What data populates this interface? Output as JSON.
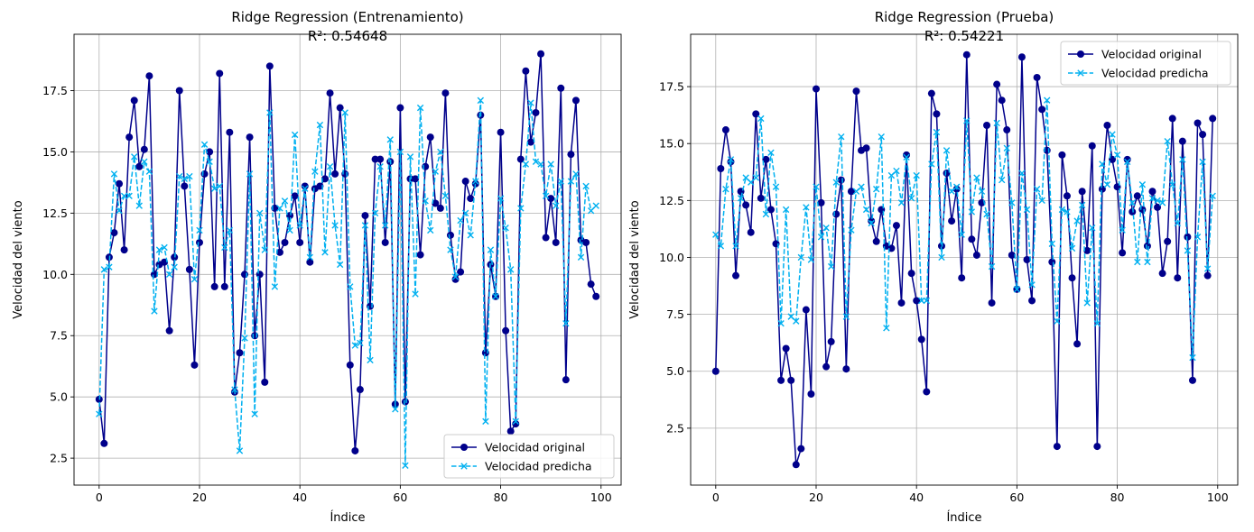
{
  "chart_data": [
    {
      "type": "line",
      "title": "Ridge Regression (Entrenamiento)",
      "subtitle": "R²: 0.54648",
      "xlabel": "Índice",
      "ylabel": "Velocidad del viento",
      "xlim": [
        -5,
        104
      ],
      "ylim": [
        1.4,
        19.8
      ],
      "xticks": [
        0,
        20,
        40,
        60,
        80,
        100
      ],
      "yticks": [
        2.5,
        5.0,
        7.5,
        10.0,
        12.5,
        15.0,
        17.5
      ],
      "ytick_labels": [
        "2.5",
        "5.0",
        "7.5",
        "10.0",
        "12.5",
        "15.0",
        "17.5"
      ],
      "grid": true,
      "legend_position": "lower-right",
      "series": [
        {
          "name": "Velocidad original",
          "color": "#00008b",
          "marker": "circle",
          "linestyle": "solid",
          "values": [
            4.9,
            3.1,
            10.7,
            11.7,
            13.7,
            11.0,
            15.6,
            17.1,
            14.4,
            15.1,
            18.1,
            10.0,
            10.4,
            10.5,
            7.7,
            10.7,
            17.5,
            13.6,
            10.2,
            6.3,
            11.3,
            14.1,
            15.0,
            9.5,
            18.2,
            9.5,
            15.8,
            5.2,
            6.8,
            10.0,
            15.6,
            7.5,
            10.0,
            5.6,
            18.5,
            12.7,
            10.9,
            11.3,
            12.4,
            13.2,
            11.3,
            13.6,
            10.5,
            13.5,
            13.6,
            13.9,
            17.4,
            14.1,
            16.8,
            14.1,
            6.3,
            2.8,
            5.3,
            12.4,
            8.7,
            14.7,
            14.7,
            11.3,
            14.6,
            4.7,
            16.8,
            4.8,
            13.9,
            13.9,
            10.8,
            14.4,
            15.6,
            12.9,
            12.7,
            17.4,
            11.6,
            9.8,
            10.1,
            13.8,
            13.1,
            13.7,
            16.5,
            6.8,
            10.4,
            9.1,
            15.8,
            7.7,
            3.6,
            3.9,
            14.7,
            18.3,
            15.4,
            16.6,
            19.0,
            11.5,
            13.1,
            11.3,
            17.6,
            5.7,
            14.9,
            17.1,
            11.4,
            11.3,
            9.6,
            9.1
          ]
        },
        {
          "name": "Velocidad predicha",
          "color": "#00b0f0",
          "marker": "x",
          "linestyle": "dashed",
          "values": [
            4.3,
            10.2,
            10.3,
            14.1,
            12.6,
            13.2,
            13.2,
            14.8,
            12.8,
            14.6,
            14.2,
            8.5,
            11.0,
            11.1,
            10.0,
            10.3,
            14.0,
            13.9,
            14.0,
            9.8,
            11.8,
            15.3,
            14.6,
            13.5,
            13.6,
            11.1,
            11.8,
            5.3,
            2.8,
            7.4,
            14.1,
            4.3,
            12.5,
            11.0,
            16.6,
            9.5,
            12.7,
            13.0,
            11.8,
            15.7,
            12.0,
            13.5,
            10.7,
            14.2,
            16.1,
            10.9,
            14.4,
            12.0,
            10.4,
            16.6,
            9.5,
            7.1,
            7.2,
            12.0,
            6.5,
            12.5,
            14.4,
            12.0,
            15.5,
            4.5,
            15.0,
            2.2,
            14.8,
            9.2,
            16.8,
            13.0,
            11.8,
            14.2,
            15.0,
            13.2,
            11.0,
            9.9,
            12.2,
            12.5,
            11.6,
            13.8,
            17.1,
            4.0,
            11.0,
            9.1,
            13.1,
            11.9,
            10.2,
            4.0,
            12.7,
            14.5,
            17.0,
            14.6,
            14.5,
            13.2,
            14.5,
            12.8,
            13.8,
            8.0,
            13.8,
            14.1,
            10.7,
            13.6,
            12.6,
            12.8
          ]
        }
      ]
    },
    {
      "type": "line",
      "title": "Ridge Regression (Prueba)",
      "subtitle": "R²: 0.54221",
      "xlabel": "Índice",
      "ylabel": "Velocidad del viento",
      "xlim": [
        -5,
        104
      ],
      "ylim": [
        0.0,
        19.8
      ],
      "xticks": [
        0,
        20,
        40,
        60,
        80,
        100
      ],
      "yticks": [
        2.5,
        5.0,
        7.5,
        10.0,
        12.5,
        15.0,
        17.5
      ],
      "ytick_labels": [
        "2.5",
        "5.0",
        "7.5",
        "10.0",
        "12.5",
        "15.0",
        "17.5"
      ],
      "grid": true,
      "legend_position": "upper-right",
      "series": [
        {
          "name": "Velocidad original",
          "color": "#00008b",
          "marker": "circle",
          "linestyle": "solid",
          "values": [
            5.0,
            13.9,
            15.6,
            14.2,
            9.2,
            12.9,
            12.3,
            11.1,
            16.3,
            12.6,
            14.3,
            12.1,
            10.6,
            4.6,
            6.0,
            4.6,
            0.9,
            1.6,
            7.7,
            4.0,
            17.4,
            12.4,
            5.2,
            6.3,
            11.9,
            13.4,
            5.1,
            12.9,
            17.3,
            14.7,
            14.8,
            11.6,
            10.7,
            12.1,
            10.5,
            10.4,
            11.4,
            8.0,
            14.5,
            9.3,
            8.1,
            6.4,
            4.1,
            17.2,
            16.3,
            10.5,
            13.7,
            11.6,
            13.0,
            9.1,
            18.9,
            10.8,
            10.1,
            12.4,
            15.8,
            8.0,
            17.6,
            16.9,
            15.6,
            10.1,
            8.6,
            18.8,
            9.9,
            8.1,
            17.9,
            16.5,
            14.7,
            9.8,
            1.7,
            14.5,
            12.7,
            9.1,
            6.2,
            12.9,
            10.3,
            14.9,
            1.7,
            13.0,
            15.8,
            14.3,
            13.1,
            10.2,
            14.3,
            12.0,
            12.7,
            12.1,
            10.5,
            12.9,
            12.2,
            9.3,
            10.7,
            16.1,
            9.1,
            15.1,
            10.9,
            4.6,
            15.9,
            15.4,
            9.2,
            16.1
          ]
        },
        {
          "name": "Velocidad predicha",
          "color": "#00b0f0",
          "marker": "x",
          "linestyle": "dashed",
          "values": [
            11.0,
            10.5,
            13.0,
            14.3,
            10.5,
            12.6,
            13.5,
            13.3,
            13.5,
            16.1,
            11.9,
            14.6,
            13.1,
            7.1,
            12.1,
            7.4,
            7.2,
            10.0,
            12.2,
            9.9,
            13.1,
            10.9,
            11.3,
            9.6,
            13.3,
            15.3,
            7.4,
            11.2,
            12.9,
            13.1,
            12.1,
            11.5,
            13.0,
            15.3,
            6.9,
            13.6,
            13.8,
            12.4,
            14.4,
            12.6,
            13.6,
            8.1,
            8.1,
            14.1,
            15.5,
            10.0,
            14.7,
            12.9,
            13.1,
            11.0,
            16.0,
            12.0,
            13.5,
            12.9,
            11.9,
            9.6,
            15.9,
            13.4,
            14.8,
            12.4,
            8.6,
            13.7,
            12.1,
            8.8,
            13.0,
            12.5,
            16.9,
            10.6,
            7.2,
            12.1,
            12.0,
            10.4,
            11.6,
            12.3,
            8.0,
            11.3,
            7.1,
            14.1,
            13.2,
            15.4,
            14.5,
            11.2,
            14.2,
            12.4,
            9.8,
            13.2,
            9.8,
            12.6,
            12.5,
            12.4,
            15.1,
            13.2,
            11.5,
            14.3,
            10.3,
            5.6,
            10.9,
            14.2,
            9.5,
            12.7
          ]
        }
      ]
    }
  ]
}
